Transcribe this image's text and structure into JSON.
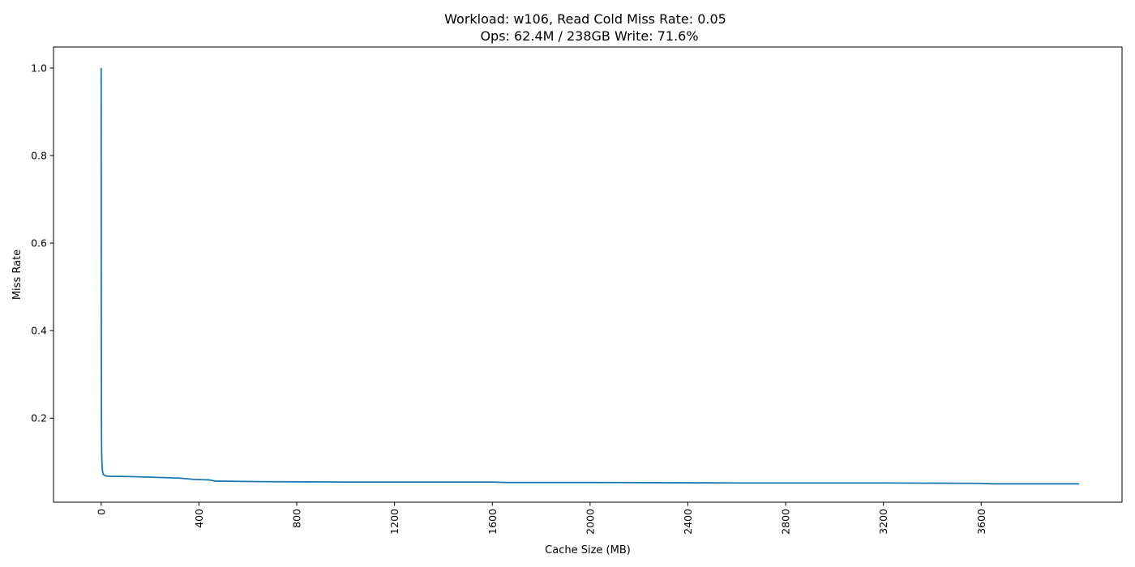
{
  "chart_data": {
    "type": "line",
    "title": "Workload: w106, Read Cold Miss Rate: 0.05",
    "subtitle": "Ops: 62.4M / 238GB Write: 71.6%",
    "xlabel": "Cache Size (MB)",
    "ylabel": "Miss Rate",
    "xlim": [
      -195,
      4176
    ],
    "ylim": [
      0.008,
      1.048
    ],
    "x_ticks": [
      0,
      400,
      800,
      1200,
      1600,
      2000,
      2400,
      2800,
      3200,
      3600
    ],
    "x_tick_labels": [
      "0",
      "400",
      "800",
      "1200",
      "1600",
      "2000",
      "2400",
      "2800",
      "3200",
      "3600"
    ],
    "x_tick_rotation": "vertical",
    "y_ticks": [
      0.2,
      0.4,
      0.6,
      0.8,
      1.0
    ],
    "y_tick_labels": [
      "0.2",
      "0.4",
      "0.6",
      "0.8",
      "1.0"
    ],
    "grid": false,
    "legend": "none",
    "series": [
      {
        "color": "#1f77b4",
        "x": [
          0,
          0.5,
          1,
          2,
          3,
          5,
          8,
          12,
          20,
          40,
          80,
          150,
          270,
          320,
          380,
          440,
          470,
          500,
          650,
          1000,
          1600,
          1660,
          2000,
          2600,
          3200,
          3600,
          3650,
          4000
        ],
        "y": [
          1.0,
          0.45,
          0.2,
          0.12,
          0.1,
          0.08,
          0.072,
          0.07,
          0.068,
          0.067,
          0.067,
          0.066,
          0.064,
          0.063,
          0.06,
          0.059,
          0.056,
          0.056,
          0.055,
          0.054,
          0.054,
          0.053,
          0.053,
          0.052,
          0.052,
          0.051,
          0.05,
          0.05
        ]
      }
    ]
  }
}
